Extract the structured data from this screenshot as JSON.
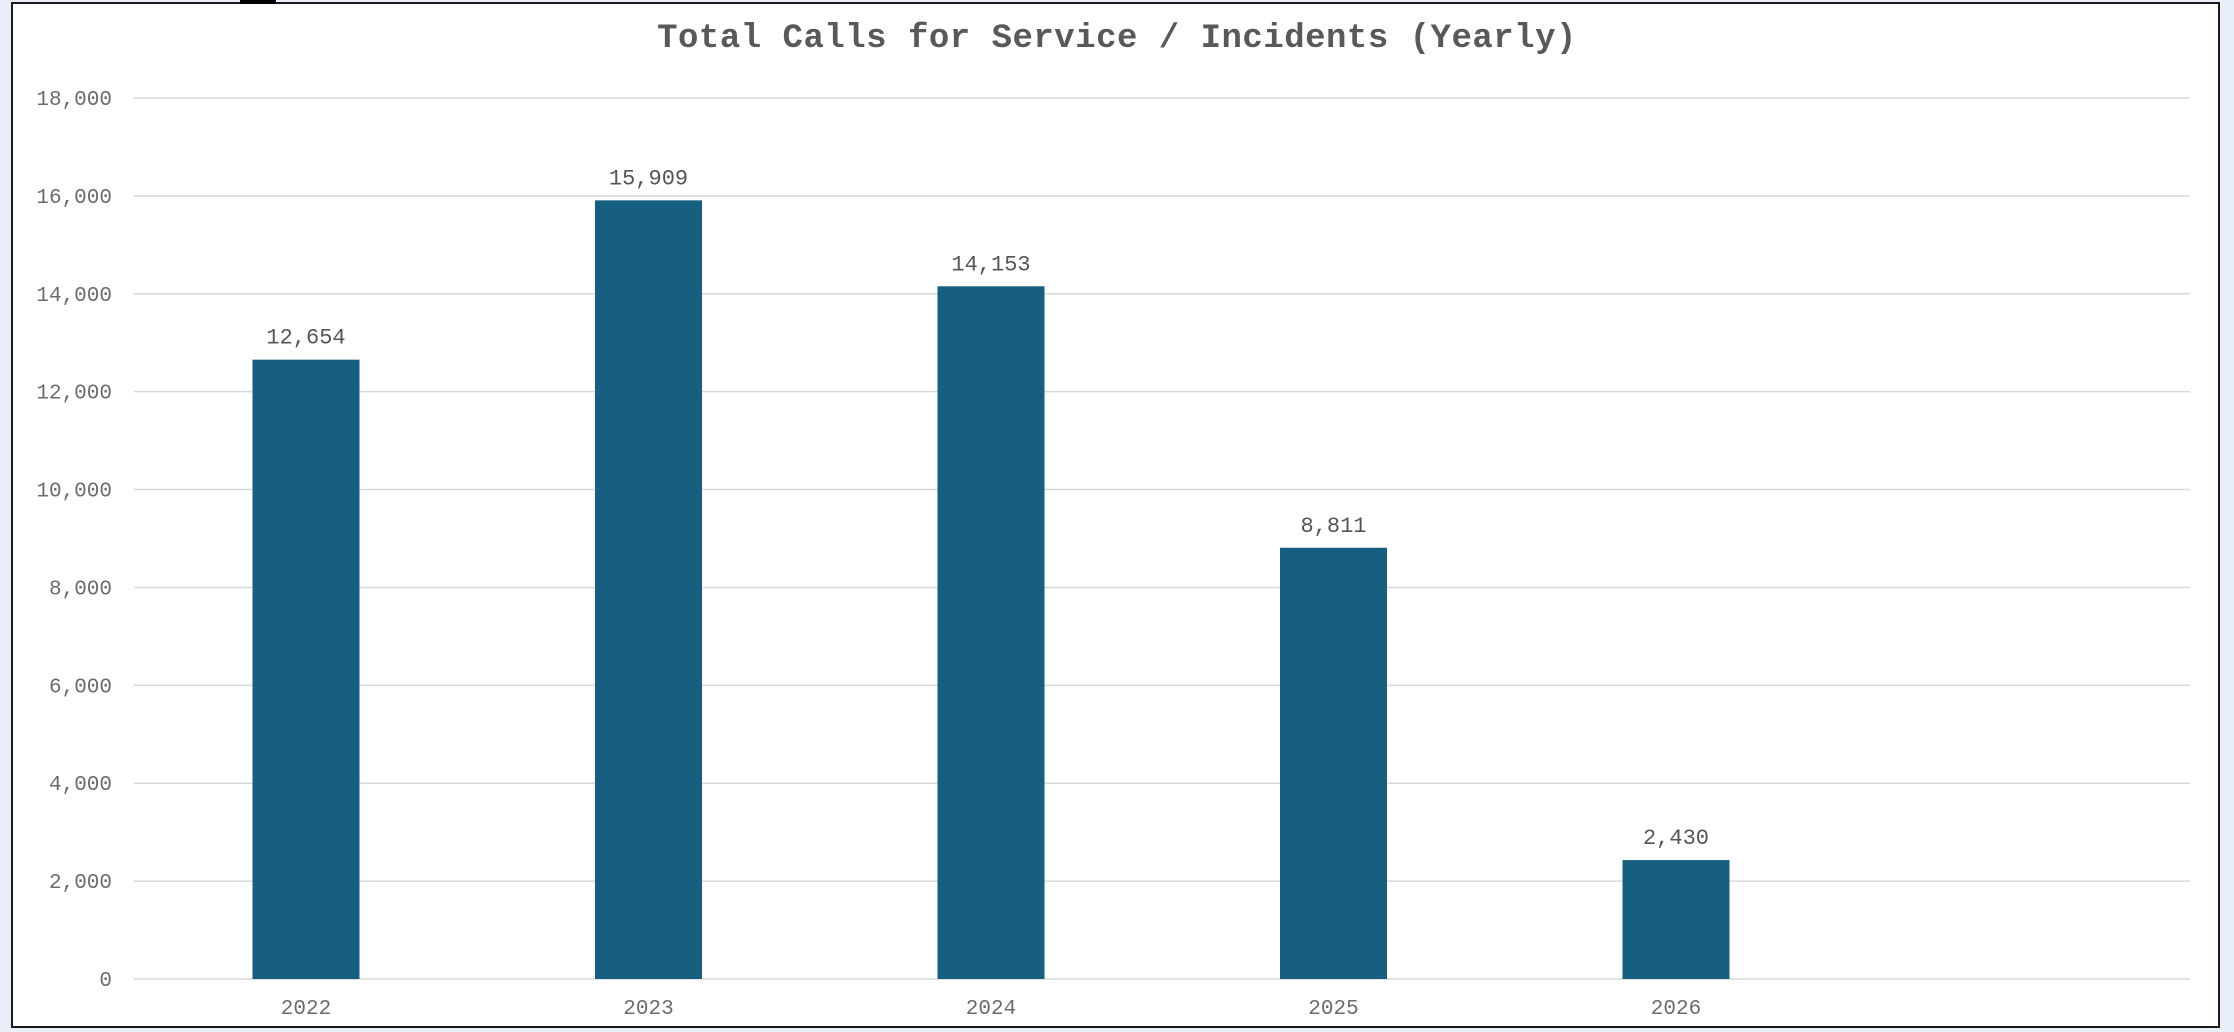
{
  "chart_data": {
    "type": "bar",
    "title": "Total Calls for Service / Incidents (Yearly)",
    "xlabel": "",
    "ylabel": "",
    "categories": [
      "2022",
      "2023",
      "2024",
      "2025",
      "2026"
    ],
    "values": [
      12654,
      15909,
      14153,
      8811,
      2430
    ],
    "value_labels": [
      "12,654",
      "15,909",
      "14,153",
      "8,811",
      "2,430"
    ],
    "ylim": [
      0,
      18000
    ],
    "yticks": [
      0,
      2000,
      4000,
      6000,
      8000,
      10000,
      12000,
      14000,
      16000,
      18000
    ],
    "ytick_labels": [
      "0",
      "2,000",
      "4,000",
      "6,000",
      "8,000",
      "10,000",
      "12,000",
      "14,000",
      "16,000",
      "18,000"
    ],
    "grid": true,
    "legend": "none",
    "colors": {
      "bar": "#175f81",
      "grid": "#d9d9d9",
      "text": "#6b6b6b",
      "title": "#595959"
    }
  }
}
